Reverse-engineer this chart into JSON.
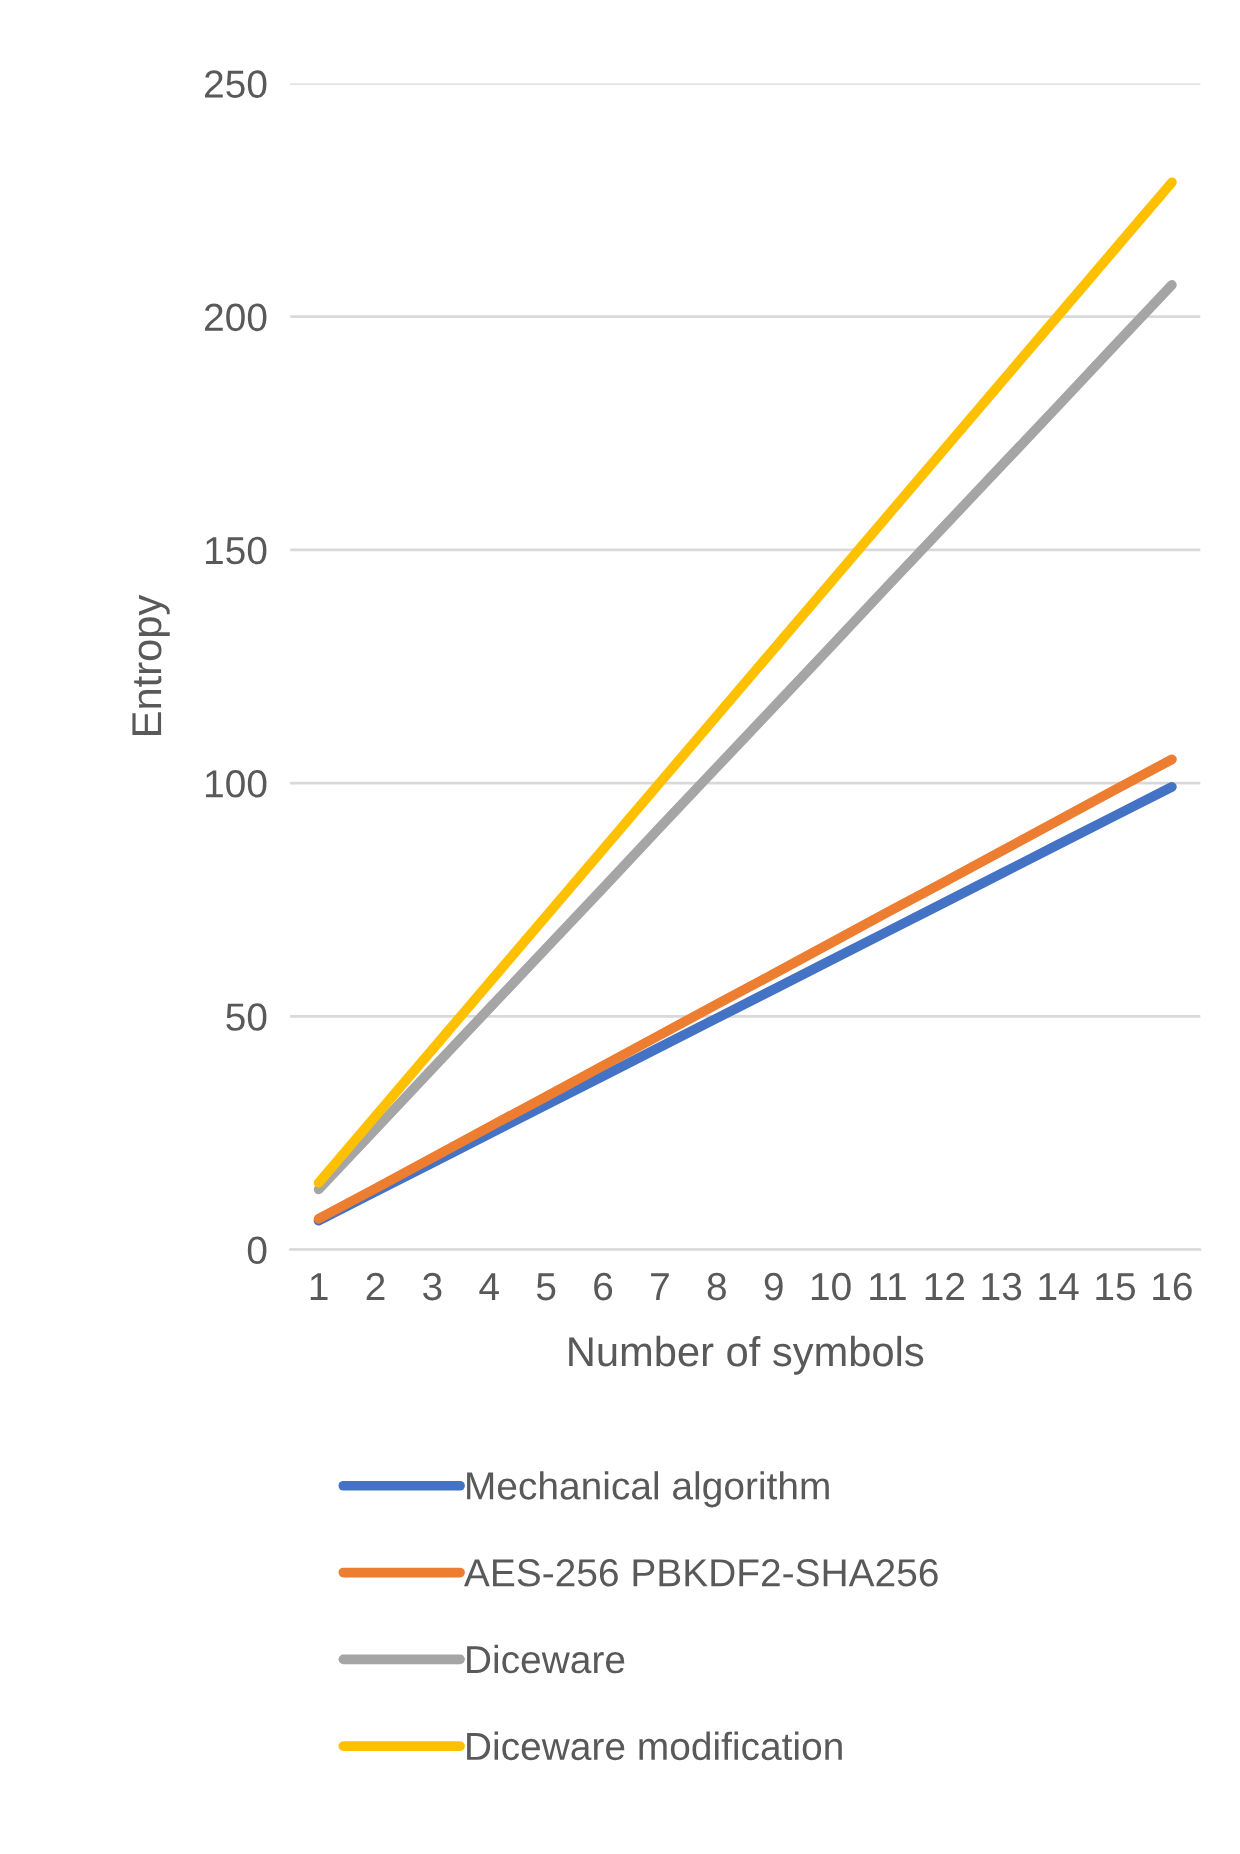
{
  "chart_data": {
    "type": "line",
    "xlabel": "Number of symbols",
    "ylabel": "Entropy",
    "categories": [
      "1",
      "2",
      "3",
      "4",
      "5",
      "6",
      "7",
      "8",
      "9",
      "10",
      "11",
      "12",
      "13",
      "14",
      "15",
      "16"
    ],
    "series": [
      {
        "name": "Mechanical algorithm",
        "color": "#4472c4",
        "values": [
          6.2,
          12.4,
          18.6,
          24.8,
          31,
          37.2,
          43.4,
          49.6,
          55.8,
          62,
          68.2,
          74.4,
          80.6,
          86.8,
          93,
          99.2
        ]
      },
      {
        "name": "AES-256 PBKDF2-SHA256",
        "color": "#ed7d31",
        "values": [
          6.6,
          13.1,
          19.7,
          26.3,
          32.8,
          39.4,
          46,
          52.6,
          59.1,
          65.7,
          72.3,
          78.8,
          85.4,
          92,
          98.6,
          105.1
        ]
      },
      {
        "name": "Diceware",
        "color": "#a5a5a5",
        "values": [
          12.9,
          25.8,
          38.8,
          51.7,
          64.6,
          77.5,
          90.5,
          103.4,
          116.3,
          129.2,
          142.2,
          155.1,
          168,
          180.9,
          193.9,
          206.8
        ]
      },
      {
        "name": "Diceware modification",
        "color": "#ffc000",
        "values": [
          14.3,
          28.6,
          42.9,
          57.2,
          71.5,
          85.8,
          100.1,
          114.4,
          128.7,
          143,
          157.3,
          171.6,
          185.9,
          200.2,
          214.5,
          228.8
        ]
      }
    ],
    "ylim": [
      0,
      250
    ],
    "yticks": [
      0,
      50,
      100,
      150,
      200,
      250
    ],
    "grid": "y",
    "legend": "bottom",
    "marker": "none",
    "line_style": "solid"
  }
}
